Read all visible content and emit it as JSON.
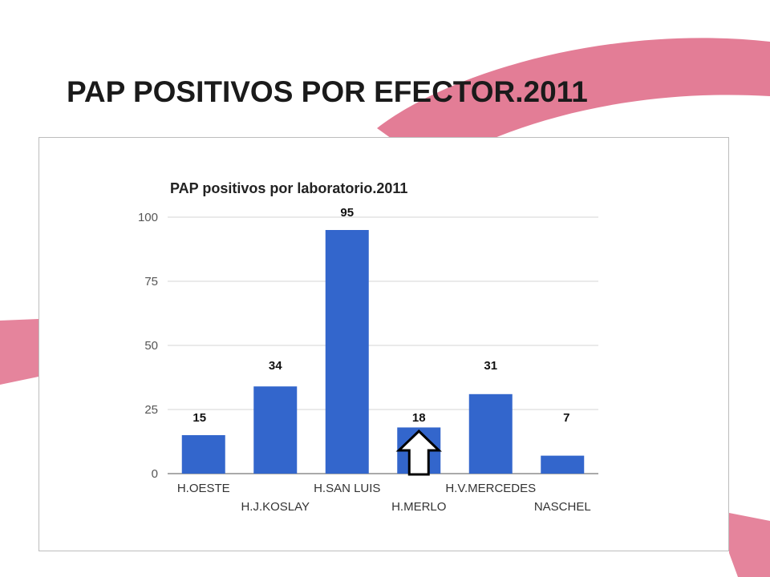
{
  "slide": {
    "title": "PAP POSITIVOS POR EFECTOR.2011"
  },
  "colors": {
    "bar": "#3366cc",
    "ribbon": "#e06f8b",
    "grid": "#d6d6d6",
    "arrow": "#000000"
  },
  "icons": {
    "annotation": "up-arrow-outline-icon"
  },
  "chart_data": {
    "type": "bar",
    "title": "PAP positivos por laboratorio.2011",
    "categories": [
      "H.OESTE",
      "H.J.KOSLAY",
      "H.SAN LUIS",
      "H.MERLO",
      "H.V.MERCEDES",
      "NASCHEL"
    ],
    "values": [
      15,
      34,
      95,
      18,
      31,
      7
    ],
    "data_labels": [
      "15",
      "34",
      "95",
      "18",
      "31",
      "7"
    ],
    "ylim": [
      0,
      100
    ],
    "yticks": [
      0,
      25,
      50,
      75,
      100
    ],
    "xlabel": "",
    "ylabel": "",
    "grid": true,
    "legend": "none",
    "highlight_category": "H.MERLO"
  }
}
